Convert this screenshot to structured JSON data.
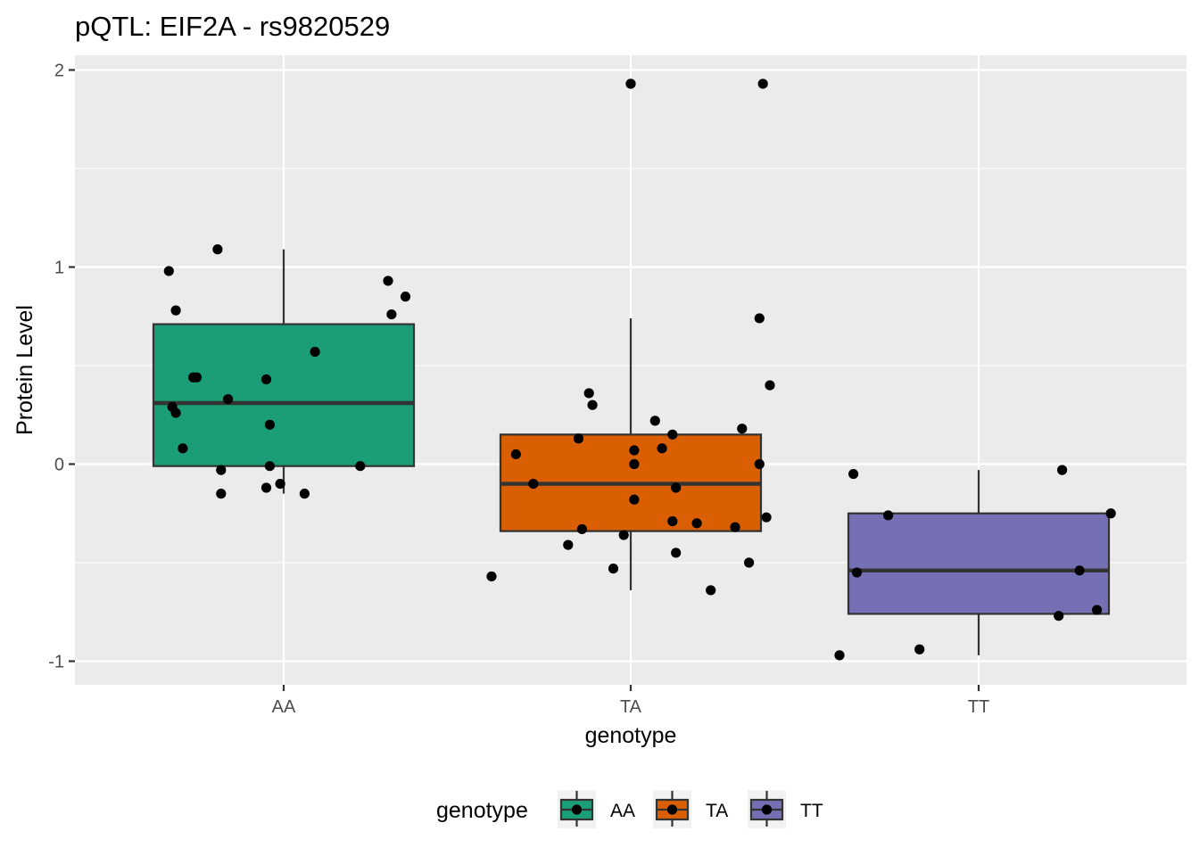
{
  "chart_data": {
    "type": "box",
    "title": "pQTL: EIF2A - rs9820529",
    "xlabel": "genotype",
    "ylabel": "Protein Level",
    "categories": [
      "AA",
      "TA",
      "TT"
    ],
    "ylim": [
      -1.1,
      2.08
    ],
    "yticks": [
      -1,
      0,
      1,
      2
    ],
    "ytick_labels": [
      "-1",
      "0",
      "1",
      "2"
    ],
    "grid": true,
    "legend": {
      "title": "genotype",
      "position": "bottom",
      "entries": [
        "AA",
        "TA",
        "TT"
      ]
    },
    "colors": {
      "AA": "#1b9e77",
      "TA": "#d95f02",
      "TT": "#7570b3"
    },
    "boxes": [
      {
        "name": "AA",
        "whisker_low": -0.15,
        "q1": -0.01,
        "median": 0.31,
        "q3": 0.71,
        "whisker_high": 1.09
      },
      {
        "name": "TA",
        "whisker_low": -0.64,
        "q1": -0.34,
        "median": -0.1,
        "q3": 0.15,
        "whisker_high": 0.74
      },
      {
        "name": "TT",
        "whisker_low": -0.97,
        "q1": -0.76,
        "median": -0.54,
        "q3": -0.25,
        "whisker_high": -0.03
      }
    ],
    "points": [
      {
        "group": "AA",
        "jitter": -0.33,
        "y": 0.98
      },
      {
        "group": "AA",
        "jitter": -0.31,
        "y": 0.78
      },
      {
        "group": "AA",
        "jitter": -0.19,
        "y": 1.09
      },
      {
        "group": "AA",
        "jitter": -0.26,
        "y": 0.44
      },
      {
        "group": "AA",
        "jitter": -0.25,
        "y": 0.44
      },
      {
        "group": "AA",
        "jitter": -0.16,
        "y": 0.33
      },
      {
        "group": "AA",
        "jitter": -0.32,
        "y": 0.29
      },
      {
        "group": "AA",
        "jitter": -0.31,
        "y": 0.26
      },
      {
        "group": "AA",
        "jitter": -0.29,
        "y": 0.08
      },
      {
        "group": "AA",
        "jitter": -0.18,
        "y": -0.03
      },
      {
        "group": "AA",
        "jitter": -0.18,
        "y": -0.15
      },
      {
        "group": "AA",
        "jitter": -0.05,
        "y": 0.43
      },
      {
        "group": "AA",
        "jitter": -0.04,
        "y": 0.2
      },
      {
        "group": "AA",
        "jitter": -0.04,
        "y": -0.01
      },
      {
        "group": "AA",
        "jitter": -0.05,
        "y": -0.12
      },
      {
        "group": "AA",
        "jitter": -0.01,
        "y": -0.1
      },
      {
        "group": "AA",
        "jitter": 0.06,
        "y": -0.15
      },
      {
        "group": "AA",
        "jitter": 0.09,
        "y": 0.57
      },
      {
        "group": "AA",
        "jitter": 0.22,
        "y": -0.01
      },
      {
        "group": "AA",
        "jitter": 0.3,
        "y": 0.93
      },
      {
        "group": "AA",
        "jitter": 0.35,
        "y": 0.85
      },
      {
        "group": "AA",
        "jitter": 0.31,
        "y": 0.76
      },
      {
        "group": "TA",
        "jitter": -0.4,
        "y": -0.57
      },
      {
        "group": "TA",
        "jitter": -0.33,
        "y": 0.05
      },
      {
        "group": "TA",
        "jitter": -0.28,
        "y": -0.1
      },
      {
        "group": "TA",
        "jitter": -0.18,
        "y": -0.41
      },
      {
        "group": "TA",
        "jitter": -0.15,
        "y": 0.13
      },
      {
        "group": "TA",
        "jitter": -0.14,
        "y": -0.33
      },
      {
        "group": "TA",
        "jitter": -0.12,
        "y": 0.36
      },
      {
        "group": "TA",
        "jitter": -0.11,
        "y": 0.3
      },
      {
        "group": "TA",
        "jitter": -0.05,
        "y": -0.53
      },
      {
        "group": "TA",
        "jitter": -0.02,
        "y": -0.36
      },
      {
        "group": "TA",
        "jitter": 0.0,
        "y": 1.93
      },
      {
        "group": "TA",
        "jitter": 0.01,
        "y": 0.07
      },
      {
        "group": "TA",
        "jitter": 0.01,
        "y": 0.0
      },
      {
        "group": "TA",
        "jitter": 0.01,
        "y": -0.18
      },
      {
        "group": "TA",
        "jitter": 0.07,
        "y": 0.22
      },
      {
        "group": "TA",
        "jitter": 0.09,
        "y": 0.08
      },
      {
        "group": "TA",
        "jitter": 0.12,
        "y": 0.15
      },
      {
        "group": "TA",
        "jitter": 0.12,
        "y": -0.29
      },
      {
        "group": "TA",
        "jitter": 0.13,
        "y": -0.12
      },
      {
        "group": "TA",
        "jitter": 0.13,
        "y": -0.45
      },
      {
        "group": "TA",
        "jitter": 0.19,
        "y": -0.3
      },
      {
        "group": "TA",
        "jitter": 0.23,
        "y": -0.64
      },
      {
        "group": "TA",
        "jitter": 0.3,
        "y": -0.32
      },
      {
        "group": "TA",
        "jitter": 0.32,
        "y": 0.18
      },
      {
        "group": "TA",
        "jitter": 0.34,
        "y": -0.5
      },
      {
        "group": "TA",
        "jitter": 0.37,
        "y": 0.0
      },
      {
        "group": "TA",
        "jitter": 0.38,
        "y": 1.93
      },
      {
        "group": "TA",
        "jitter": 0.37,
        "y": 0.74
      },
      {
        "group": "TA",
        "jitter": 0.39,
        "y": -0.27
      },
      {
        "group": "TA",
        "jitter": 0.4,
        "y": 0.4
      },
      {
        "group": "TT",
        "jitter": -0.4,
        "y": -0.97
      },
      {
        "group": "TT",
        "jitter": -0.36,
        "y": -0.05
      },
      {
        "group": "TT",
        "jitter": -0.35,
        "y": -0.55
      },
      {
        "group": "TT",
        "jitter": -0.26,
        "y": -0.26
      },
      {
        "group": "TT",
        "jitter": -0.17,
        "y": -0.94
      },
      {
        "group": "TT",
        "jitter": 0.24,
        "y": -0.03
      },
      {
        "group": "TT",
        "jitter": 0.23,
        "y": -0.77
      },
      {
        "group": "TT",
        "jitter": 0.29,
        "y": -0.54
      },
      {
        "group": "TT",
        "jitter": 0.34,
        "y": -0.74
      },
      {
        "group": "TT",
        "jitter": 0.38,
        "y": -0.25
      }
    ],
    "outliers": [
      {
        "group": "TA",
        "y": 1.93
      }
    ]
  }
}
